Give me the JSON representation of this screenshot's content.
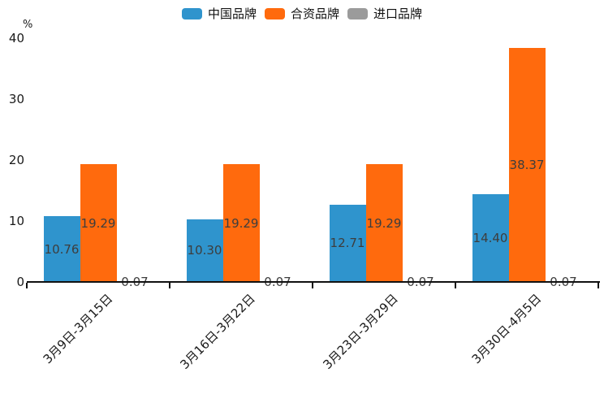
{
  "chart_data": {
    "type": "bar",
    "title": "",
    "unit_label": "%",
    "categories": [
      "3月9日-3月15日",
      "3月16日-3月22日",
      "3月23日-3月29日",
      "3月30日-4月5日"
    ],
    "series": [
      {
        "name": "中国品牌",
        "color": "#2f94cd",
        "values": [
          10.76,
          10.3,
          12.71,
          14.4
        ]
      },
      {
        "name": "合资品牌",
        "color": "#ff6a0d",
        "values": [
          19.29,
          19.29,
          19.29,
          38.37
        ]
      },
      {
        "name": "进口品牌",
        "color": "#9b9b9b",
        "values": [
          0.07,
          0.07,
          0.07,
          0.07
        ]
      }
    ],
    "ylim": [
      0,
      40
    ],
    "yticks": [
      0,
      10,
      20,
      30,
      40
    ],
    "label_decimals": 2,
    "grid": false,
    "legend_position": "top",
    "xlabel": "",
    "ylabel": "%"
  }
}
